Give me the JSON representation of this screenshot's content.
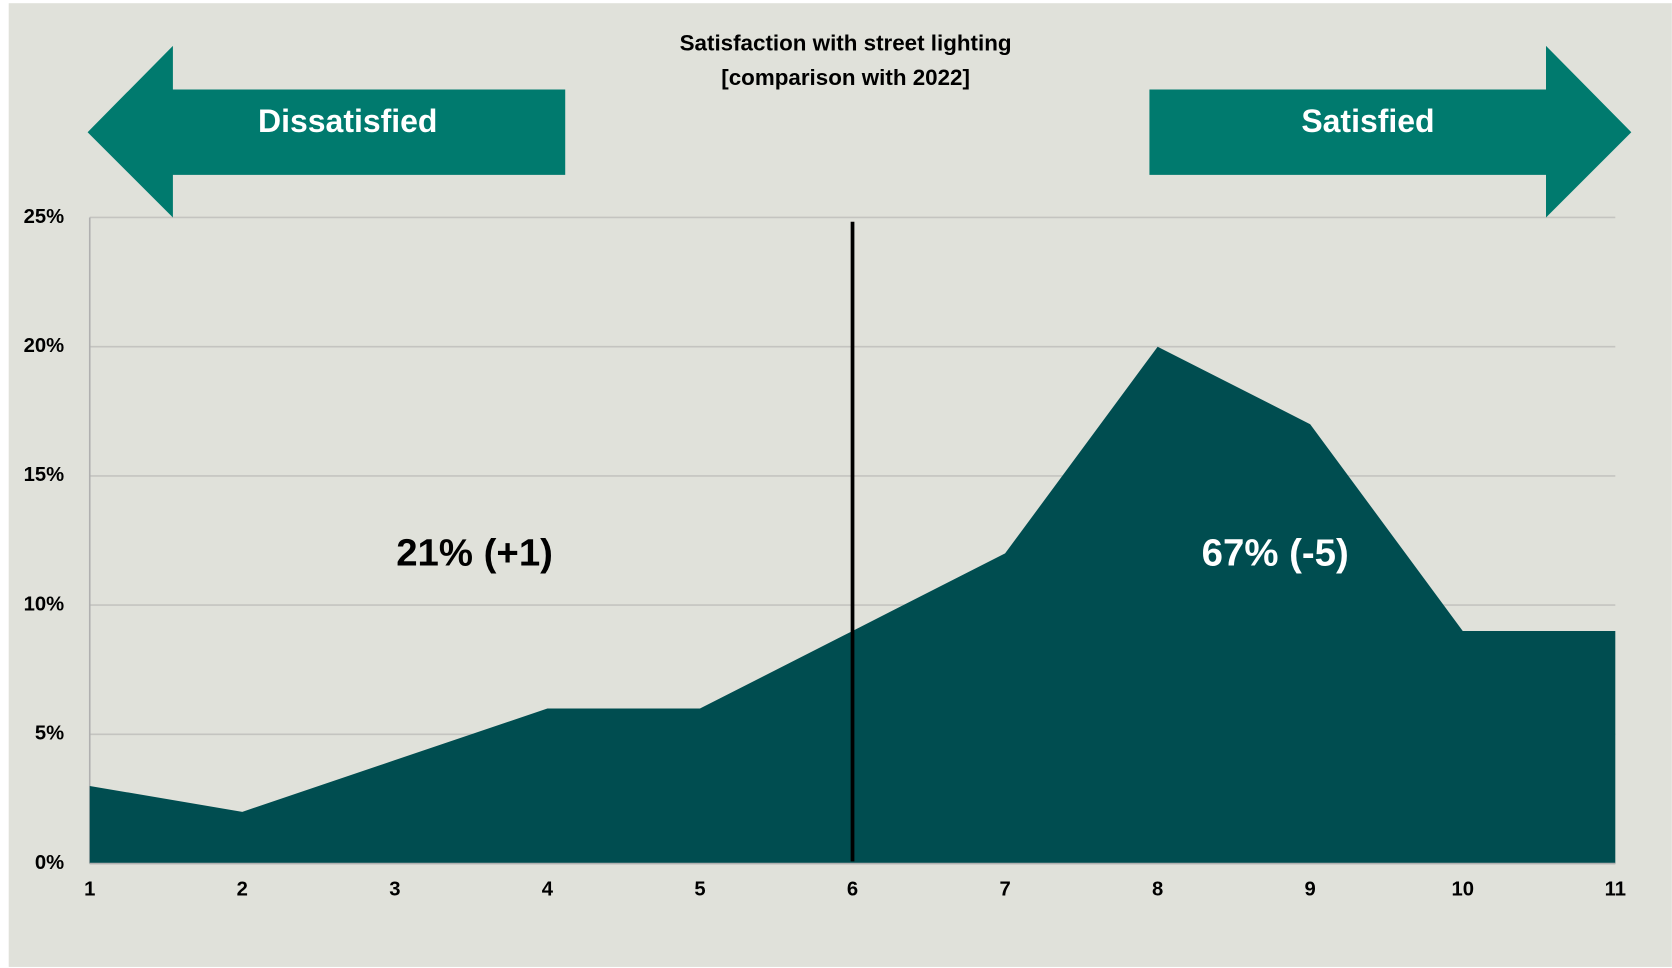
{
  "chart_data": {
    "type": "area",
    "title": "Satisfaction with street lighting",
    "subtitle": "[comparison with 2022]",
    "x": [
      1,
      2,
      3,
      4,
      5,
      6,
      7,
      8,
      9,
      10,
      11
    ],
    "values": [
      3,
      2,
      4,
      6,
      6,
      9,
      12,
      20,
      17,
      9,
      9
    ],
    "color": "#004d50",
    "xlim": [
      1,
      11
    ],
    "xticks": [
      1,
      2,
      3,
      4,
      5,
      6,
      7,
      8,
      9,
      10,
      11
    ],
    "ylim": [
      0,
      25
    ],
    "yticks": [
      {
        "value": 0,
        "label": "0%"
      },
      {
        "value": 5,
        "label": "5%"
      },
      {
        "value": 10,
        "label": "10%"
      },
      {
        "value": 15,
        "label": "15%"
      },
      {
        "value": 20,
        "label": "20%"
      },
      {
        "value": 25,
        "label": "25%"
      }
    ],
    "grid": true,
    "vline": 6,
    "annotations": {
      "left_arrow": "Dissatisfied",
      "right_arrow": "Satisfied",
      "left_share": "21% (+1)",
      "right_share": "67% (-5)"
    }
  }
}
